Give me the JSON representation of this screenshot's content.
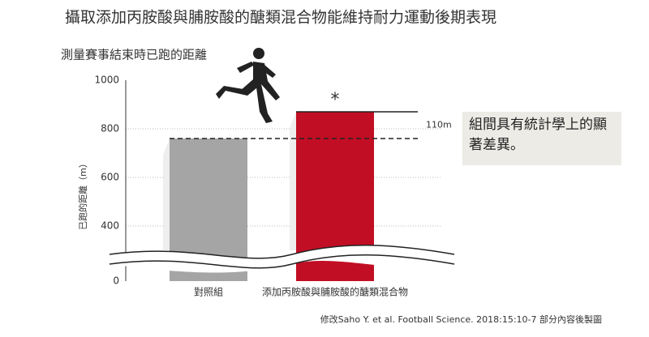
{
  "chart_data": {
    "type": "bar",
    "title": "攝取添加丙胺酸與脯胺酸的醣類混合物能維持耐力運動後期表現",
    "subtitle": "測量賽事結束時已跑的距離",
    "y_label": "已跑的距離（m）",
    "categories": [
      "對照組",
      "添加丙胺酸與脯胺酸的醣類混合物"
    ],
    "values": [
      760,
      870
    ],
    "colors": [
      "#a5a5a5",
      "#c20e24"
    ],
    "ylim": [
      0,
      1000
    ],
    "yticks": [
      0,
      400,
      600,
      800,
      1000
    ],
    "grid": true,
    "difference_label": "110m",
    "significance_mark": "*",
    "note": "組間具有統計學上的顯著差異。",
    "source": "修改Saho Y. et al. Football Science. 2018:15:10-7 部分內容後製圖"
  }
}
